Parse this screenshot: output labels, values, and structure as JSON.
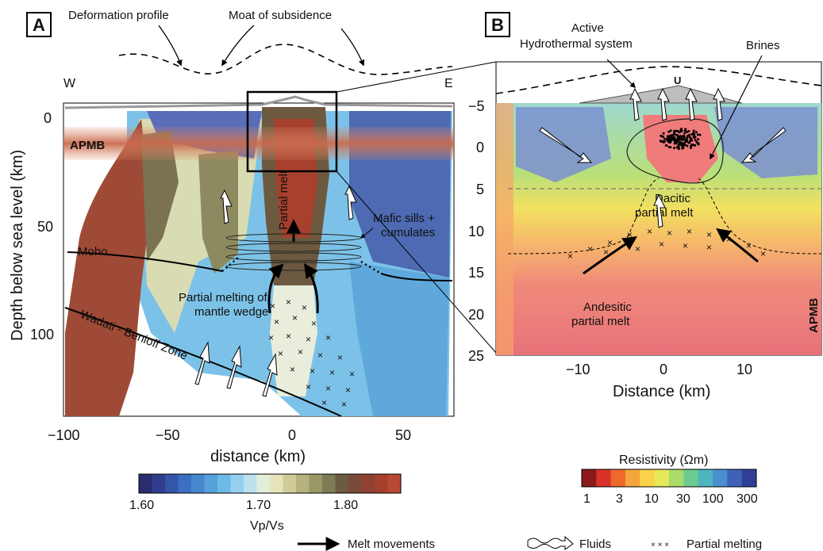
{
  "panel_a": {
    "letter": "A",
    "deformation_label": "Deformation profile",
    "moat_label": "Moat of subsidence",
    "west": "W",
    "east": "E",
    "apmb": "APMB",
    "moho": "Moho",
    "wadati": "Wadati - Benioff Zone",
    "partial_melt": "Partial melt",
    "mafic_sills": "Mafic sills + cumulates",
    "mantle_wedge": "Partial melting of mantle wedge",
    "ylabel": "Depth below sea level (km)",
    "xlabel": "distance (km)",
    "xticks": [
      "−100",
      "−50",
      "0",
      "50"
    ],
    "yticks": [
      "0",
      "50",
      "100"
    ],
    "colorbar": {
      "ticks": [
        "1.60",
        "1.70",
        "1.80"
      ],
      "label": "Vp/Vs",
      "colors": [
        "#2b2c6e",
        "#303e8c",
        "#3556a6",
        "#3b6fbf",
        "#4687cf",
        "#56a0dc",
        "#6fb9e6",
        "#94d0ee",
        "#bde2ee",
        "#e2eed9",
        "#e7e4bc",
        "#d0cc9a",
        "#b5b27e",
        "#999866",
        "#7d7c55",
        "#6c5a43",
        "#7a4a39",
        "#8f4231",
        "#a5402d",
        "#b84a35"
      ]
    }
  },
  "panel_b": {
    "letter": "B",
    "hydrothermal": "Active Hydrothermal system",
    "brines": "Brines",
    "u_label": "U",
    "dacitic": "Dacitic partial melt",
    "andesitic": "Andesitic partial melt",
    "apmb": "APMB",
    "xlabel": "Distance (km)",
    "xticks": [
      "−10",
      "0",
      "10"
    ],
    "yticks": [
      "−5",
      "0",
      "5",
      "10",
      "15",
      "20",
      "25"
    ],
    "colorbar": {
      "title": "Resistivity (Ωm)",
      "ticks": [
        "1",
        "3",
        "10",
        "30",
        "100",
        "300"
      ],
      "colors": [
        "#8c1a1a",
        "#d9322a",
        "#ee6a2a",
        "#f5a63a",
        "#f9d24a",
        "#e5e95a",
        "#a9dc6a",
        "#6ccb8e",
        "#4fb6c0",
        "#4a8fd0",
        "#3f62b8",
        "#2f3f95"
      ]
    }
  },
  "legend": {
    "melt": "Melt movements",
    "fluids": "Fluids",
    "partial": "Partial melting"
  }
}
